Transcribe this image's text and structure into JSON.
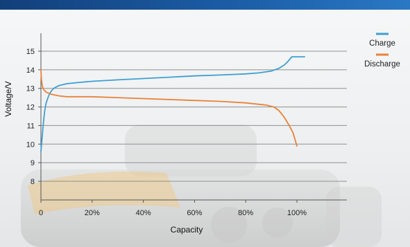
{
  "chart_data": {
    "type": "line",
    "title": "",
    "xlabel": "Capacity",
    "ylabel": "Voltage/V",
    "xlim": [
      0,
      120
    ],
    "ylim": [
      7.5,
      16
    ],
    "x_ticks": [
      {
        "value": 0,
        "label": "0"
      },
      {
        "value": 20,
        "label": "20%"
      },
      {
        "value": 40,
        "label": "40%"
      },
      {
        "value": 60,
        "label": "60%"
      },
      {
        "value": 80,
        "label": "80%"
      },
      {
        "value": 100,
        "label": "100%"
      }
    ],
    "y_ticks": [
      {
        "value": 8,
        "label": "8"
      },
      {
        "value": 9,
        "label": "9"
      },
      {
        "value": 10,
        "label": "10"
      },
      {
        "value": 11,
        "label": "11"
      },
      {
        "value": 12,
        "label": "12"
      },
      {
        "value": 13,
        "label": "13"
      },
      {
        "value": 14,
        "label": "14"
      },
      {
        "value": 15,
        "label": "15"
      }
    ],
    "grid": "horizontal",
    "legend_position": "top-right",
    "series": [
      {
        "name": "Charge",
        "color": "#3e9fd0",
        "points": [
          [
            0,
            9.6
          ],
          [
            0.5,
            10.4
          ],
          [
            1,
            11.2
          ],
          [
            1.5,
            11.8
          ],
          [
            2,
            12.2
          ],
          [
            3,
            12.6
          ],
          [
            4,
            12.85
          ],
          [
            5,
            13.0
          ],
          [
            7,
            13.15
          ],
          [
            10,
            13.25
          ],
          [
            15,
            13.32
          ],
          [
            20,
            13.38
          ],
          [
            30,
            13.46
          ],
          [
            40,
            13.53
          ],
          [
            50,
            13.6
          ],
          [
            60,
            13.67
          ],
          [
            70,
            13.72
          ],
          [
            80,
            13.78
          ],
          [
            85,
            13.83
          ],
          [
            90,
            13.93
          ],
          [
            93,
            14.08
          ],
          [
            95,
            14.25
          ],
          [
            96.5,
            14.45
          ],
          [
            98,
            14.7
          ],
          [
            100,
            14.7
          ],
          [
            103,
            14.7
          ]
        ]
      },
      {
        "name": "Discharge",
        "color": "#e8823a",
        "points": [
          [
            0,
            14.0
          ],
          [
            0.2,
            13.5
          ],
          [
            0.5,
            13.15
          ],
          [
            1,
            12.95
          ],
          [
            2,
            12.8
          ],
          [
            4,
            12.68
          ],
          [
            7,
            12.6
          ],
          [
            10,
            12.55
          ],
          [
            20,
            12.55
          ],
          [
            30,
            12.5
          ],
          [
            40,
            12.45
          ],
          [
            50,
            12.4
          ],
          [
            60,
            12.35
          ],
          [
            70,
            12.3
          ],
          [
            80,
            12.22
          ],
          [
            88,
            12.1
          ],
          [
            91,
            12.0
          ],
          [
            93,
            11.8
          ],
          [
            95,
            11.45
          ],
          [
            97,
            11.0
          ],
          [
            98.5,
            10.6
          ],
          [
            100,
            9.9
          ]
        ]
      }
    ]
  }
}
